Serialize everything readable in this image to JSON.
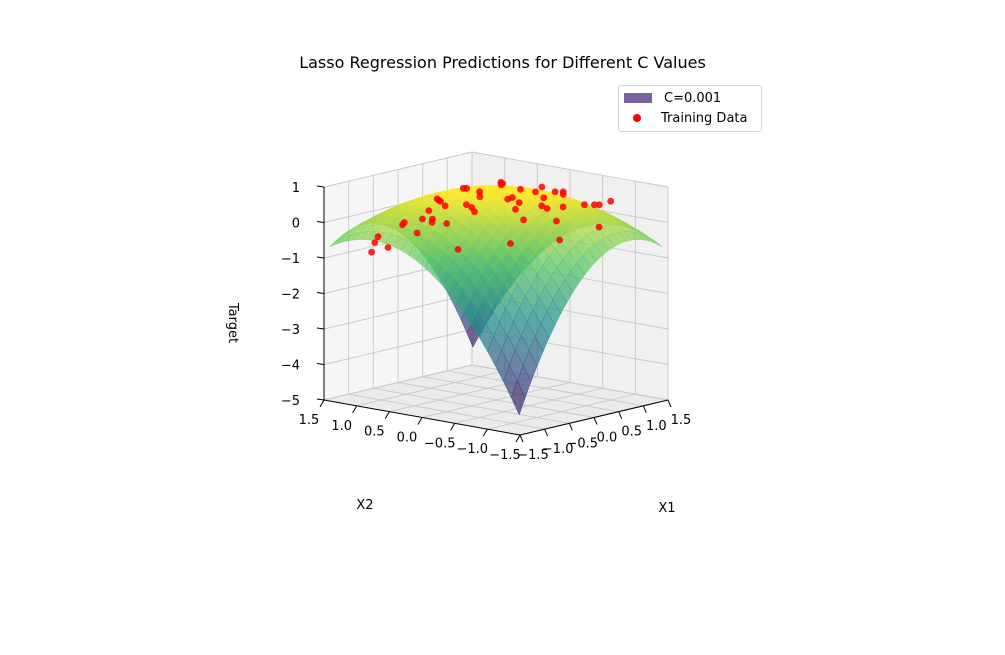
{
  "chart_data": {
    "type": "surface3d",
    "title": "Lasso Regression Predictions for Different C Values",
    "xlabel": "X1",
    "ylabel": "X2",
    "zlabel": "Target",
    "xlim": [
      -1.5,
      1.5
    ],
    "ylim": [
      -1.5,
      1.5
    ],
    "zlim": [
      -5,
      1
    ],
    "xticks": [
      "−1.5",
      "−1.0",
      "−0.5",
      "0.0",
      "0.5",
      "1.0",
      "1.5"
    ],
    "yticks": [
      "1.5",
      "1.0",
      "0.5",
      "0.0",
      "−0.5",
      "−1.0",
      "−1.5"
    ],
    "zticks": [
      "1",
      "0",
      "−1",
      "−2",
      "−3",
      "−4",
      "−5"
    ],
    "grid": true,
    "legend_position": "top-right",
    "legend": [
      {
        "label": "C=0.001",
        "kind": "surface",
        "color": "#7b61a0"
      },
      {
        "label": "Training Data",
        "kind": "scatter",
        "color": "#ff0000"
      }
    ],
    "surface": {
      "colormap": "viridis",
      "approx_model": "z = 1 - 0.85*x^2 - 0.85*y^2 - 0.9*x*y"
    },
    "training_data": [
      [
        -1.2,
        0.9,
        -0.3
      ],
      [
        -1.1,
        0.6,
        0.1
      ],
      [
        -1.0,
        1.1,
        -0.6
      ],
      [
        -0.9,
        0.3,
        0.2
      ],
      [
        -0.8,
        0.8,
        0.0
      ],
      [
        -0.7,
        -0.2,
        0.6
      ],
      [
        -0.6,
        1.2,
        -0.9
      ],
      [
        -0.5,
        0.4,
        0.5
      ],
      [
        -0.4,
        -0.6,
        0.7
      ],
      [
        -0.3,
        0.9,
        -0.1
      ],
      [
        -0.2,
        0.1,
        0.9
      ],
      [
        -0.1,
        -1.0,
        0.4
      ],
      [
        0.0,
        0.5,
        0.8
      ],
      [
        0.1,
        -0.3,
        1.0
      ],
      [
        0.2,
        1.0,
        0.2
      ],
      [
        0.3,
        -0.8,
        0.6
      ],
      [
        0.4,
        0.2,
        0.9
      ],
      [
        0.5,
        -1.2,
        0.1
      ],
      [
        0.6,
        0.7,
        0.3
      ],
      [
        0.7,
        -0.5,
        0.8
      ],
      [
        0.8,
        0.0,
        0.6
      ],
      [
        0.9,
        -0.9,
        0.5
      ],
      [
        1.0,
        0.4,
        0.1
      ],
      [
        1.1,
        -0.2,
        0.5
      ],
      [
        1.2,
        -0.6,
        0.3
      ],
      [
        -1.3,
        -0.4,
        -0.2
      ],
      [
        -0.9,
        -0.9,
        0.0
      ],
      [
        -0.6,
        0.0,
        0.7
      ],
      [
        -0.2,
        -0.4,
        0.9
      ],
      [
        0.2,
        0.6,
        0.7
      ],
      [
        0.5,
        0.3,
        0.8
      ],
      [
        0.8,
        -0.3,
        0.7
      ],
      [
        1.1,
        0.1,
        0.3
      ],
      [
        -1.0,
        0.0,
        0.3
      ],
      [
        -0.4,
        0.6,
        0.6
      ],
      [
        0.0,
        -0.7,
        0.7
      ],
      [
        0.4,
        -0.4,
        1.0
      ],
      [
        0.7,
        0.9,
        -0.1
      ],
      [
        -0.8,
        1.3,
        -1.0
      ],
      [
        1.3,
        0.2,
        -0.1
      ],
      [
        -0.3,
        -1.2,
        0.0
      ],
      [
        0.3,
        1.2,
        -0.4
      ],
      [
        -1.2,
        0.3,
        0.0
      ],
      [
        0.9,
        0.5,
        0.2
      ],
      [
        -0.5,
        -0.8,
        0.5
      ],
      [
        0.6,
        -0.9,
        0.6
      ],
      [
        -0.7,
        0.5,
        0.4
      ],
      [
        0.1,
        0.0,
        1.1
      ],
      [
        -0.1,
        0.8,
        0.4
      ],
      [
        1.0,
        -1.0,
        0.6
      ]
    ]
  }
}
